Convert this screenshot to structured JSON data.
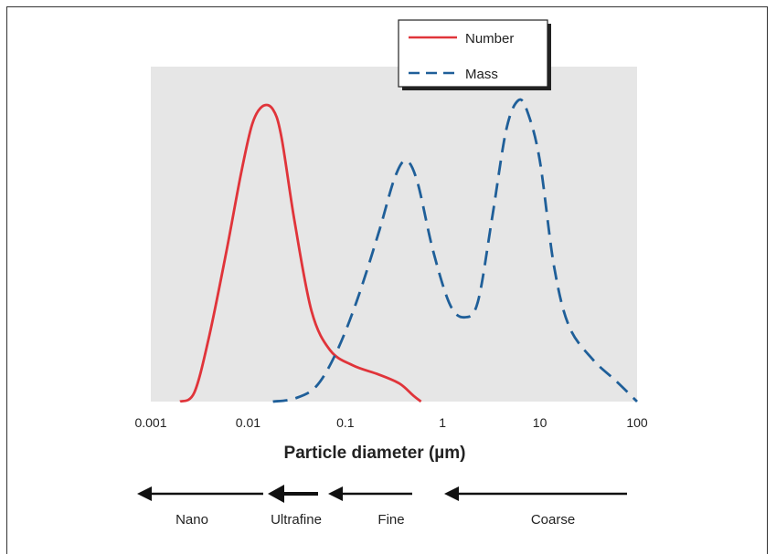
{
  "chart_data": {
    "type": "line",
    "x_scale": "log",
    "xlim": [
      0.001,
      100
    ],
    "x_ticks": [
      "0.001",
      "0.01",
      "0.1",
      "1",
      "10",
      "100"
    ],
    "xlabel": "Particle diameter (µm)",
    "ylabel": "",
    "grid": false,
    "legend_position": "top-right",
    "series": [
      {
        "name": "Number",
        "color": "#e0343a",
        "style": "solid",
        "points": [
          [
            0.002,
            0
          ],
          [
            0.0028,
            0.03
          ],
          [
            0.004,
            0.22
          ],
          [
            0.006,
            0.5
          ],
          [
            0.0085,
            0.76
          ],
          [
            0.011,
            0.92
          ],
          [
            0.014,
            0.98
          ],
          [
            0.018,
            0.97
          ],
          [
            0.022,
            0.88
          ],
          [
            0.03,
            0.6
          ],
          [
            0.045,
            0.3
          ],
          [
            0.07,
            0.17
          ],
          [
            0.12,
            0.12
          ],
          [
            0.22,
            0.09
          ],
          [
            0.36,
            0.06
          ],
          [
            0.5,
            0.02
          ],
          [
            0.6,
            0
          ]
        ]
      },
      {
        "name": "Mass",
        "color": "#1f5f99",
        "style": "dashed",
        "points": [
          [
            0.018,
            0
          ],
          [
            0.03,
            0.01
          ],
          [
            0.05,
            0.05
          ],
          [
            0.08,
            0.16
          ],
          [
            0.13,
            0.33
          ],
          [
            0.22,
            0.56
          ],
          [
            0.32,
            0.74
          ],
          [
            0.42,
            0.8
          ],
          [
            0.55,
            0.73
          ],
          [
            0.8,
            0.5
          ],
          [
            1.2,
            0.32
          ],
          [
            1.7,
            0.28
          ],
          [
            2.3,
            0.33
          ],
          [
            3.2,
            0.6
          ],
          [
            4.5,
            0.9
          ],
          [
            6.0,
            1.0
          ],
          [
            7.5,
            0.96
          ],
          [
            10,
            0.8
          ],
          [
            14,
            0.45
          ],
          [
            20,
            0.25
          ],
          [
            35,
            0.14
          ],
          [
            60,
            0.07
          ],
          [
            100,
            0
          ]
        ]
      }
    ]
  },
  "size_ranges": [
    {
      "label": "Nano"
    },
    {
      "label": "Ultrafine"
    },
    {
      "label": "Fine"
    },
    {
      "label": "Coarse"
    }
  ],
  "colors": {
    "plot_background": "#e6e6e6",
    "arrow": "#111111"
  }
}
